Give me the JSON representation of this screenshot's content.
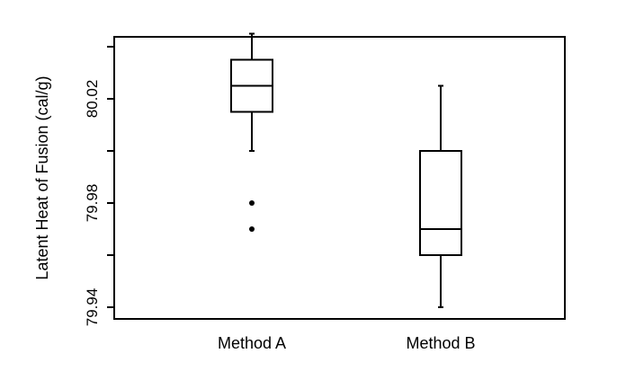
{
  "chart_data": {
    "type": "box",
    "ylabel": "Latent Heat of Fusion (cal/g)",
    "xlabel": "",
    "ylim": [
      79.94,
      80.045
    ],
    "yticks": [
      79.94,
      79.98,
      80.02
    ],
    "ytick_labels": [
      "79.94",
      "79.98",
      "80.02"
    ],
    "yticks_unlabeled": [
      79.96,
      80.0,
      80.04
    ],
    "categories": [
      "Method A",
      "Method B"
    ],
    "series": [
      {
        "category": "Method A",
        "whisker_low": 80.0,
        "q1": 80.015,
        "median": 80.025,
        "q3": 80.035,
        "whisker_high": 80.045,
        "outliers": [
          79.98,
          79.97
        ]
      },
      {
        "category": "Method B",
        "whisker_low": 79.94,
        "q1": 79.96,
        "median": 79.97,
        "q3": 80.0,
        "whisker_high": 80.025,
        "outliers": []
      }
    ],
    "grid": false,
    "legend": "none"
  }
}
